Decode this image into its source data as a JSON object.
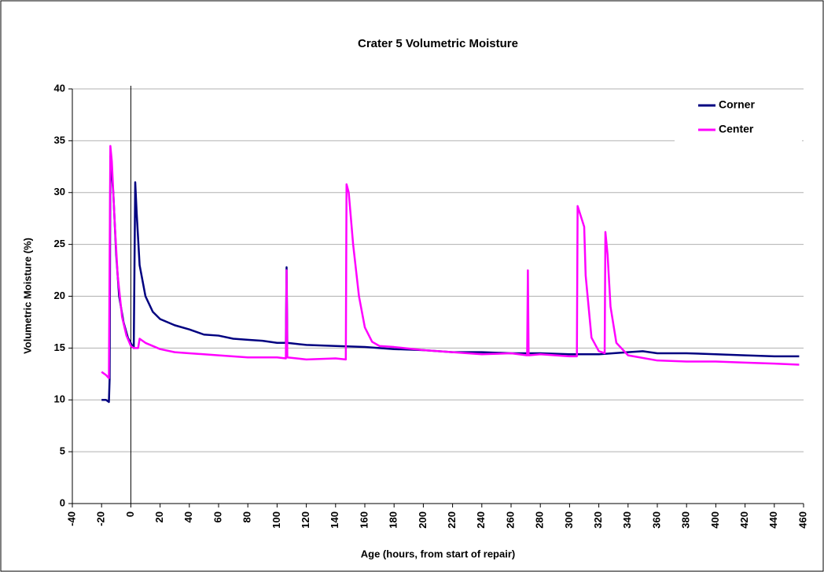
{
  "chart_data": {
    "type": "line",
    "title": "Crater 5 Volumetric Moisture",
    "x_label": "Age (hours, from start of repair)",
    "y_label": "Volumetric Moisture (%)",
    "xlim": [
      -40,
      460
    ],
    "xticks": [
      -40,
      -20,
      0,
      20,
      40,
      60,
      80,
      100,
      120,
      140,
      160,
      180,
      200,
      220,
      240,
      260,
      280,
      300,
      320,
      340,
      360,
      380,
      400,
      420,
      440,
      460
    ],
    "ylim": [
      0,
      40
    ],
    "yticks": [
      0,
      5,
      10,
      15,
      20,
      25,
      30,
      35,
      40
    ],
    "grid": true,
    "reference_line_x": 0,
    "legend": "top-right",
    "series": [
      {
        "name": "Corner",
        "color": "#000080",
        "x": [
          -20,
          -17,
          -15,
          -14.5,
          -14,
          -12,
          -10,
          -8,
          -5,
          -2,
          1,
          2,
          3,
          4,
          6,
          10,
          15,
          20,
          30,
          40,
          50,
          60,
          70,
          80,
          90,
          100,
          106,
          106.5,
          107,
          120,
          140,
          160,
          180,
          200,
          220,
          240,
          260,
          280,
          300,
          320,
          340,
          350,
          360,
          380,
          400,
          420,
          440,
          457
        ],
        "values": [
          10,
          10,
          9.8,
          12,
          33.5,
          30,
          24,
          20,
          17.5,
          16,
          15.2,
          15,
          31,
          28,
          23,
          20,
          18.5,
          17.8,
          17.2,
          16.8,
          16.3,
          16.2,
          15.9,
          15.8,
          15.7,
          15.5,
          15.5,
          22.8,
          15.5,
          15.3,
          15.2,
          15.1,
          14.9,
          14.8,
          14.6,
          14.6,
          14.5,
          14.5,
          14.4,
          14.4,
          14.6,
          14.7,
          14.5,
          14.5,
          14.4,
          14.3,
          14.2,
          14.2
        ]
      },
      {
        "name": "Center",
        "color": "#ff00ff",
        "x": [
          -20,
          -17,
          -15,
          -14,
          -13,
          -11,
          -9,
          -6,
          -3,
          0,
          2,
          5,
          6,
          10,
          20,
          30,
          40,
          60,
          80,
          100,
          106,
          106.5,
          107,
          120,
          140,
          147,
          147.5,
          149,
          152,
          156,
          160,
          165,
          170,
          180,
          200,
          220,
          240,
          260,
          271,
          271.5,
          272,
          280,
          300,
          305,
          305.5,
          310,
          311,
          315,
          320,
          324,
          324.5,
          326,
          328,
          332,
          340,
          360,
          380,
          400,
          420,
          440,
          457
        ],
        "values": [
          12.7,
          12.4,
          12.1,
          34.5,
          33,
          27,
          22,
          18,
          16.2,
          15.2,
          15,
          15,
          15.9,
          15.5,
          14.9,
          14.6,
          14.5,
          14.3,
          14.1,
          14.1,
          14,
          22.5,
          14.1,
          13.9,
          14,
          13.9,
          30.8,
          30,
          25,
          20,
          17,
          15.6,
          15.2,
          15.1,
          14.8,
          14.6,
          14.4,
          14.5,
          14.3,
          22.5,
          14.3,
          14.4,
          14.2,
          14.2,
          28.7,
          26.7,
          22,
          16,
          14.7,
          14.5,
          26.2,
          24,
          19,
          15.5,
          14.3,
          13.8,
          13.7,
          13.7,
          13.6,
          13.5,
          13.4
        ]
      }
    ]
  }
}
